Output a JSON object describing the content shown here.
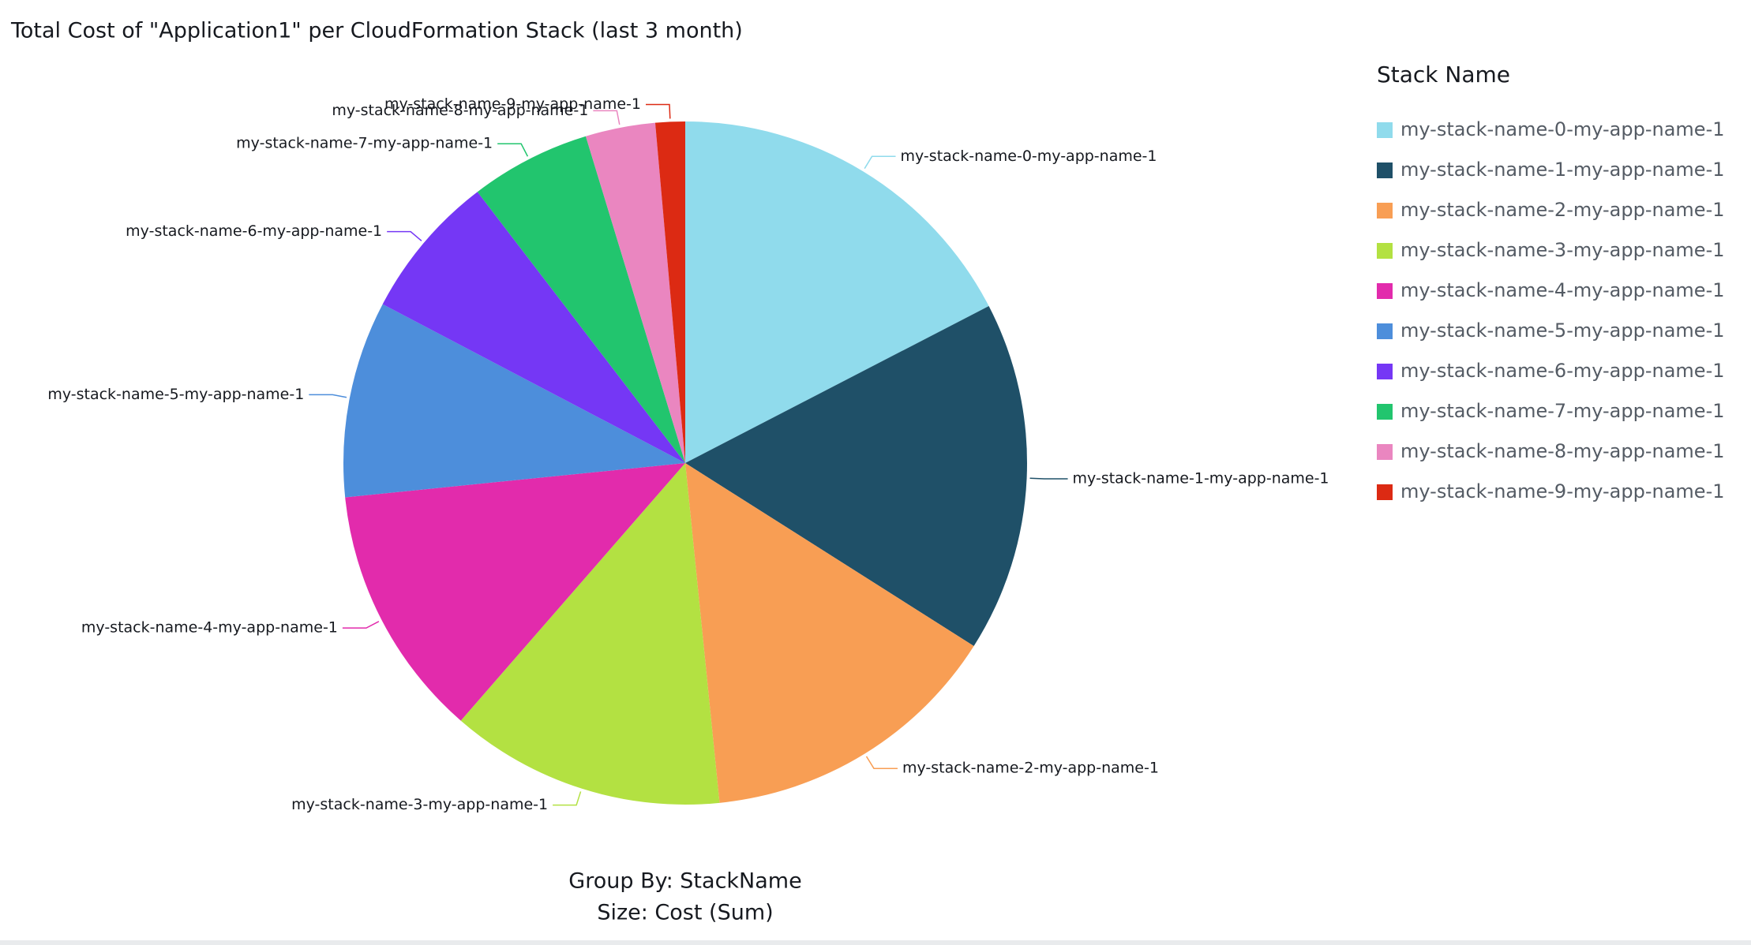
{
  "chart_data": {
    "type": "pie",
    "title": "Total Cost of \"Application1\" per CloudFormation Stack (last 3 month)",
    "legend_title": "Stack Name",
    "legend_position": "right",
    "annotations": [
      "Group By: StackName",
      "Size: Cost (Sum)"
    ],
    "categories": [
      "my-stack-name-0-my-app-name-1",
      "my-stack-name-1-my-app-name-1",
      "my-stack-name-2-my-app-name-1",
      "my-stack-name-3-my-app-name-1",
      "my-stack-name-4-my-app-name-1",
      "my-stack-name-5-my-app-name-1",
      "my-stack-name-6-my-app-name-1",
      "my-stack-name-7-my-app-name-1",
      "my-stack-name-8-my-app-name-1",
      "my-stack-name-9-my-app-name-1"
    ],
    "values": [
      17.4,
      16.6,
      14.4,
      13.0,
      12.0,
      9.3,
      6.9,
      5.7,
      3.3,
      1.4
    ],
    "colors": [
      "#90dbec",
      "#1f5068",
      "#f89e54",
      "#b3e142",
      "#e22bac",
      "#4d8edb",
      "#7537f5",
      "#22c56e",
      "#ea86c0",
      "#dc2a13"
    ]
  }
}
